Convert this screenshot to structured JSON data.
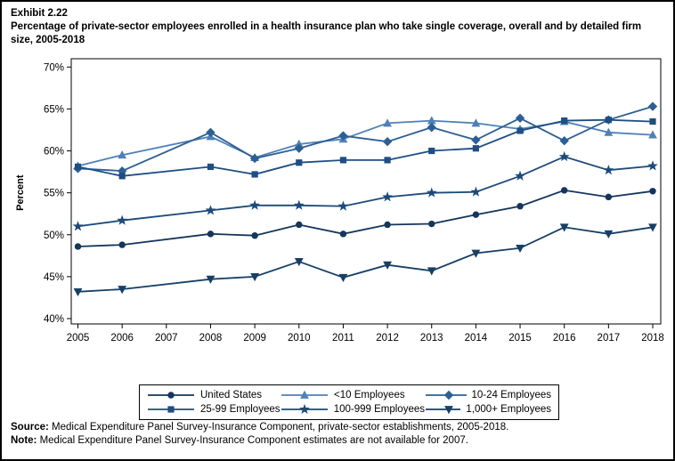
{
  "header": {
    "exhibit": "Exhibit 2.22",
    "title": "Percentage of private-sector employees enrolled in a health insurance plan who take single coverage, overall and by detailed firm size, 2005-2018"
  },
  "chart_data": {
    "type": "line",
    "x": [
      2005,
      2006,
      2007,
      2008,
      2009,
      2010,
      2011,
      2012,
      2013,
      2014,
      2015,
      2016,
      2017,
      2018
    ],
    "x_tick_labels": [
      "2005",
      "2006",
      "2007",
      "2008",
      "2009",
      "2010",
      "2011",
      "2012",
      "2013",
      "2014",
      "2015",
      "2016",
      "2017",
      "2018"
    ],
    "ylabel": "Percent",
    "ylim": [
      40,
      70
    ],
    "yticks": [
      40,
      45,
      50,
      55,
      60,
      65,
      70
    ],
    "ytick_labels": [
      "40%",
      "45%",
      "50%",
      "55%",
      "60%",
      "65%",
      "70%"
    ],
    "grid": false,
    "legend_position": "bottom",
    "missing_data_year": 2007,
    "series": [
      {
        "name": "United States",
        "marker": "circle",
        "color": "#14355c",
        "values": [
          48.6,
          48.8,
          null,
          50.1,
          49.9,
          51.2,
          50.1,
          51.2,
          51.3,
          52.4,
          53.4,
          55.3,
          54.5,
          55.2
        ]
      },
      {
        "name": "<10 Employees",
        "marker": "triangle-up",
        "color": "#4f81b6",
        "values": [
          58.2,
          59.5,
          null,
          61.7,
          59.2,
          60.8,
          61.4,
          63.3,
          63.6,
          63.3,
          62.6,
          63.5,
          62.2,
          61.9
        ]
      },
      {
        "name": "10-24 Employees",
        "marker": "diamond",
        "color": "#2d5f94",
        "values": [
          57.9,
          57.6,
          null,
          62.2,
          59.1,
          60.3,
          61.8,
          61.1,
          62.8,
          61.3,
          63.9,
          61.2,
          63.7,
          65.3
        ]
      },
      {
        "name": "25-99 Employees",
        "marker": "square",
        "color": "#1e4e82",
        "values": [
          58.1,
          57.0,
          null,
          58.1,
          57.2,
          58.6,
          58.9,
          58.9,
          60.0,
          60.3,
          62.4,
          63.6,
          63.7,
          63.5
        ]
      },
      {
        "name": "100-999 Employees",
        "marker": "star",
        "color": "#1c4a7a",
        "values": [
          51.0,
          51.7,
          null,
          52.9,
          53.5,
          53.5,
          53.4,
          54.5,
          55.0,
          55.1,
          57.0,
          59.3,
          57.7,
          58.2
        ]
      },
      {
        "name": "1,000+ Employees",
        "marker": "triangle-down",
        "color": "#173f66",
        "values": [
          43.2,
          43.5,
          null,
          44.7,
          45.0,
          46.8,
          44.9,
          46.4,
          45.7,
          47.8,
          48.4,
          50.9,
          50.1,
          50.9
        ]
      }
    ]
  },
  "footer": {
    "source_prefix": "Source:",
    "source_text": " Medical Expenditure Panel Survey-Insurance Component, private-sector establishments, 2005-2018.",
    "note_prefix": "Note:",
    "note_text": " Medical Expenditure Panel Survey-Insurance Component estimates are not available for 2007."
  }
}
